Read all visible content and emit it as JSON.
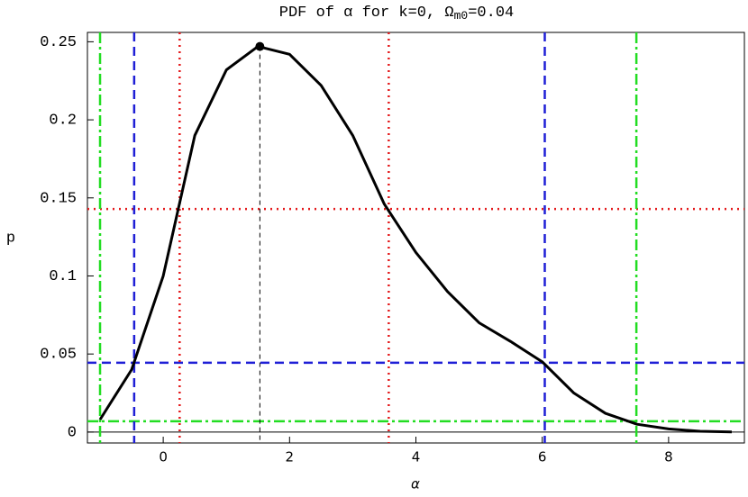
{
  "chart_data": {
    "type": "line",
    "title": [
      "PDF of α for k=0, Ω",
      "m0",
      "=0.04"
    ],
    "xlabel": "α",
    "ylabel": "p",
    "x": [
      -1,
      -0.5,
      0,
      0.5,
      1,
      1.5,
      2,
      2.5,
      3,
      3.5,
      4,
      4.5,
      5,
      5.5,
      6,
      6.5,
      7,
      7.5,
      8,
      8.5,
      9
    ],
    "values": [
      0.008,
      0.04,
      0.1,
      0.19,
      0.232,
      0.247,
      0.242,
      0.222,
      0.19,
      0.146,
      0.115,
      0.09,
      0.07,
      0.058,
      0.045,
      0.025,
      0.012,
      0.005,
      0.002,
      0.0005,
      0.0001
    ],
    "color": "#000000",
    "xlim": [
      -1.2,
      9.2
    ],
    "ylim": [
      -0.007,
      0.256
    ],
    "xticks": [
      0,
      2,
      4,
      6,
      8
    ],
    "yticks": [
      0,
      0.05,
      0.1,
      0.15,
      0.2,
      0.25
    ],
    "mode": {
      "x": 1.53,
      "y": 0.247
    },
    "hlines": [
      {
        "value": 0.1429,
        "color": "#e41a1c",
        "style": "dotted"
      },
      {
        "value": 0.0444,
        "color": "#1f1fd6",
        "style": "dashed"
      },
      {
        "value": 0.0069,
        "color": "#22dd22",
        "style": "dashdot"
      }
    ],
    "vlines": [
      {
        "value": 0.26,
        "color": "#e41a1c",
        "style": "dotted"
      },
      {
        "value": 3.57,
        "color": "#e41a1c",
        "style": "dotted"
      },
      {
        "value": -0.46,
        "color": "#1f1fd6",
        "style": "dashed"
      },
      {
        "value": 6.04,
        "color": "#1f1fd6",
        "style": "dashed"
      },
      {
        "value": -1.0,
        "color": "#22dd22",
        "style": "dashdot"
      },
      {
        "value": 7.49,
        "color": "#22dd22",
        "style": "dashdot"
      }
    ]
  }
}
